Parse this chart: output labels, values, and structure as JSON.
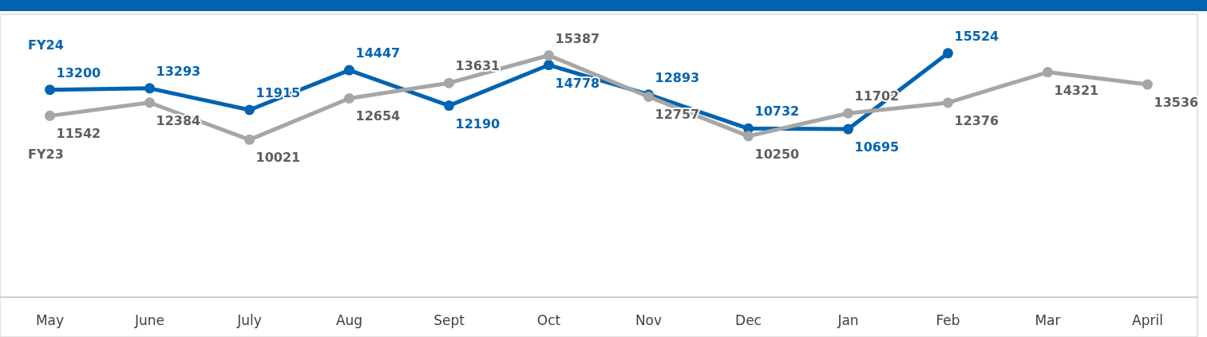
{
  "chart_data": {
    "type": "line",
    "categories": [
      "May",
      "June",
      "July",
      "Aug",
      "Sept",
      "Oct",
      "Nov",
      "Dec",
      "Jan",
      "Feb",
      "Mar",
      "April"
    ],
    "series": [
      {
        "name": "FY24",
        "color": "#0063b1",
        "values": [
          13200,
          13293,
          11915,
          14447,
          12190,
          14778,
          12893,
          10732,
          10695,
          15524,
          null,
          null
        ]
      },
      {
        "name": "FY23",
        "color": "#a6a6a6",
        "values": [
          11542,
          12384,
          10021,
          12654,
          13631,
          15387,
          12757,
          10250,
          11702,
          12376,
          14321,
          13536
        ]
      }
    ],
    "ylim": [
      0,
      18000
    ],
    "tick_labels": "x",
    "data_labels": true,
    "marker": "circle",
    "line_style": "solid"
  }
}
